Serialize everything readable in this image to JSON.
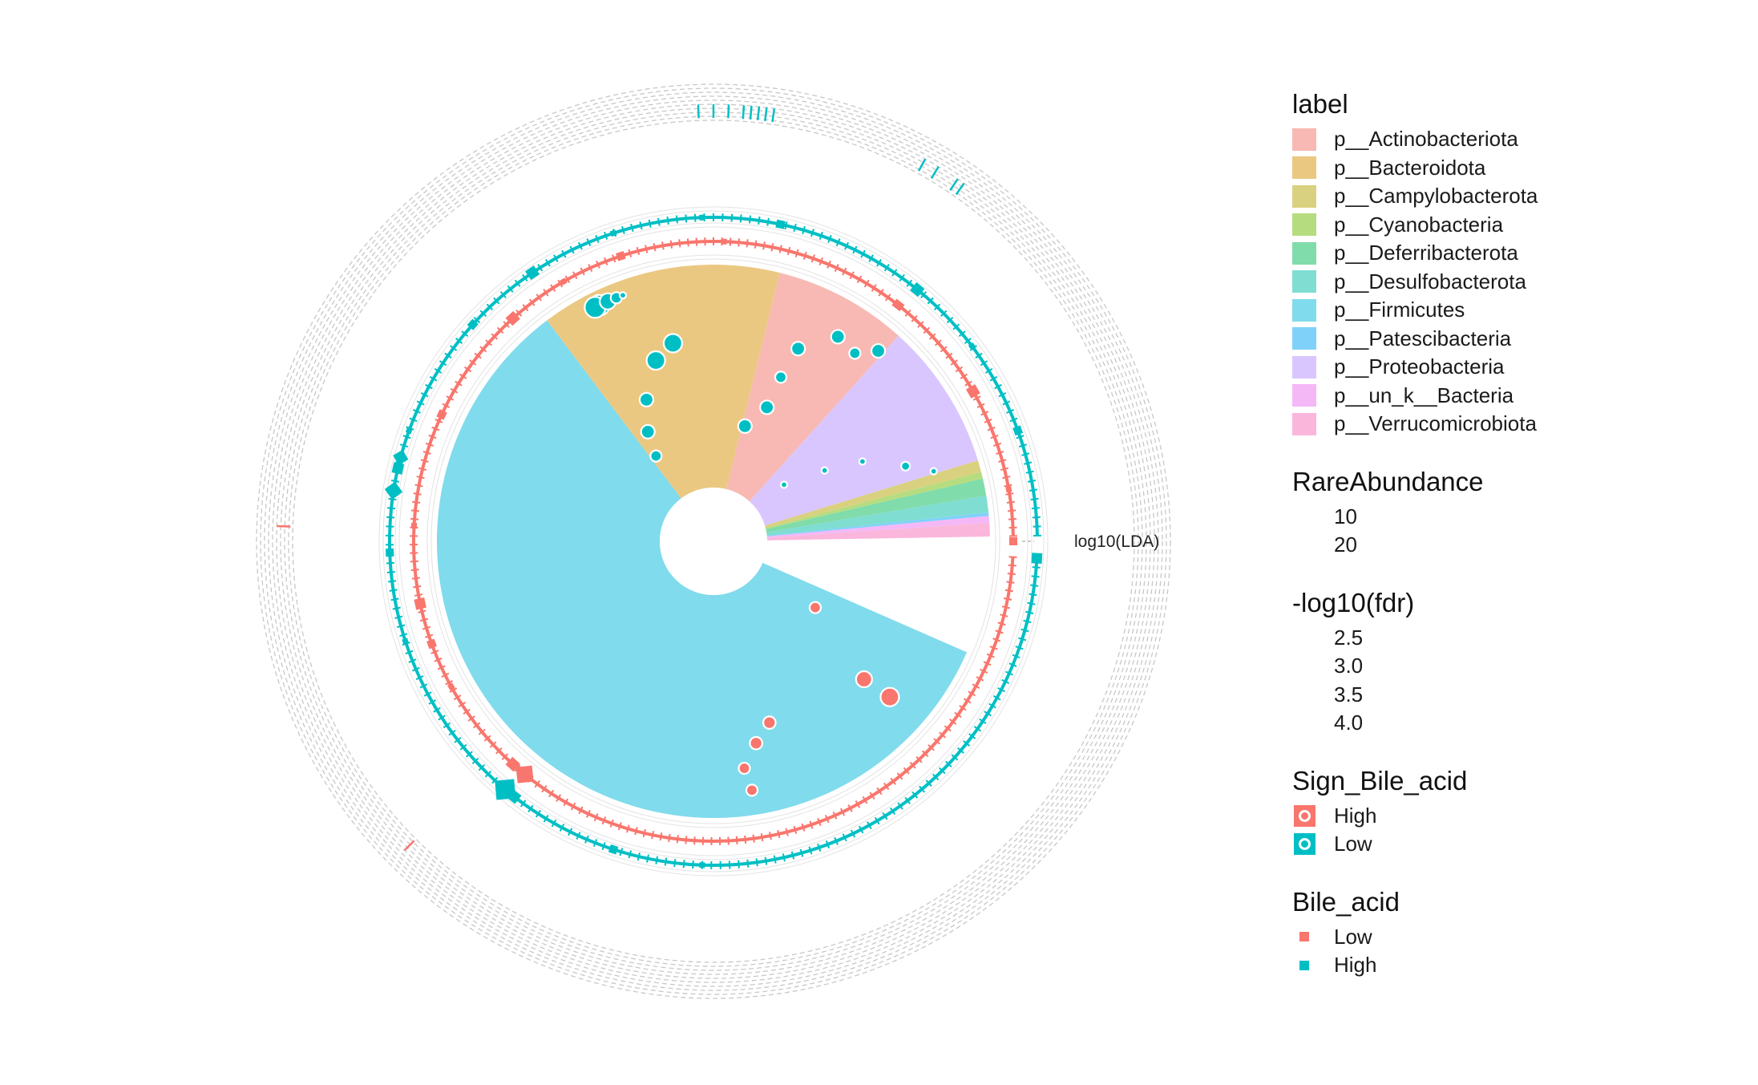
{
  "chart_data": {
    "type": "circular-lda-clade",
    "radial_label": "log10(LDA)",
    "palette": {
      "high": "#F8766D",
      "low": "#00BFC4",
      "ring_gray": "#c8c8c8"
    },
    "sectors": [
      {
        "label": "p__Actinobacteriota",
        "color": "#F8B9B4",
        "share": 0.079
      },
      {
        "label": "p__Bacteroidota",
        "color": "#EBC882",
        "share": 0.143
      },
      {
        "label": "p__Campylobacterota",
        "color": "#D9D17F",
        "share": 0.007
      },
      {
        "label": "p__Cyanobacteria",
        "color": "#B6DC80",
        "share": 0.004
      },
      {
        "label": "p__Deferribacterota",
        "color": "#80DCAA",
        "share": 0.01
      },
      {
        "label": "p__Desulfobacterota",
        "color": "#80DDD2",
        "share": 0.01
      },
      {
        "label": "p__Firmicutes",
        "color": "#80DBEC",
        "share": 0.588
      },
      {
        "label": "p__Patescibacteria",
        "color": "#80D1FA",
        "share": 0.002
      },
      {
        "label": "p__Proteobacteria",
        "color": "#D9C6FF",
        "share": 0.087
      },
      {
        "label": "p__un_k__Bacteria",
        "color": "#F4B8F7",
        "share": 0.004
      },
      {
        "label": "p__Verrucomicrobiota",
        "color": "#FBB6DC",
        "share": 0.008
      }
    ],
    "clade_points": [
      {
        "sector": "p__Bacteroidota",
        "group": "Low",
        "abundance": 18,
        "depth": 0.64,
        "pos": 0.5
      },
      {
        "sector": "p__Bacteroidota",
        "group": "Low",
        "abundance": 18,
        "depth": 0.58,
        "pos": 0.38
      },
      {
        "sector": "p__Bacteroidota",
        "group": "Low",
        "abundance": 14,
        "depth": 0.42,
        "pos": 0.23
      },
      {
        "sector": "p__Bacteroidota",
        "group": "Low",
        "abundance": 14,
        "depth": 0.28,
        "pos": 0.12
      },
      {
        "sector": "p__Bacteroidota",
        "group": "Low",
        "abundance": 12,
        "depth": 0.16,
        "pos": 0.06
      },
      {
        "sector": "p__Bacteroidota",
        "group": "Low",
        "abundance": 20,
        "depth": 0.93,
        "pos": 0.22
      },
      {
        "sector": "p__Bacteroidota",
        "group": "Low",
        "abundance": 20,
        "depth": 0.93,
        "pos": 0.2
      },
      {
        "sector": "p__Bacteroidota",
        "group": "Low",
        "abundance": 16,
        "depth": 0.93,
        "pos": 0.26
      },
      {
        "sector": "p__Bacteroidota",
        "group": "Low",
        "abundance": 12,
        "depth": 0.93,
        "pos": 0.3
      },
      {
        "sector": "p__Bacteroidota",
        "group": "Low",
        "abundance": 8,
        "depth": 0.93,
        "pos": 0.33
      },
      {
        "sector": "p__Actinobacteriota",
        "group": "Low",
        "abundance": 14,
        "depth": 0.24,
        "pos": 0.05
      },
      {
        "sector": "p__Actinobacteriota",
        "group": "Low",
        "abundance": 14,
        "depth": 0.36,
        "pos": 0.28
      },
      {
        "sector": "p__Actinobacteriota",
        "group": "Low",
        "abundance": 12,
        "depth": 0.52,
        "pos": 0.3
      },
      {
        "sector": "p__Actinobacteriota",
        "group": "Low",
        "abundance": 14,
        "depth": 0.68,
        "pos": 0.35
      },
      {
        "sector": "p__Actinobacteriota",
        "group": "Low",
        "abundance": 14,
        "depth": 0.82,
        "pos": 0.62
      },
      {
        "sector": "p__Actinobacteriota",
        "group": "Low",
        "abundance": 12,
        "depth": 0.8,
        "pos": 0.82
      },
      {
        "sector": "p__Actinobacteriota",
        "group": "Low",
        "abundance": 14,
        "depth": 0.88,
        "pos": 0.96
      },
      {
        "sector": "p__Proteobacteria",
        "group": "Low",
        "abundance": 8,
        "depth": 0.1,
        "pos": 0.3
      },
      {
        "sector": "p__Proteobacteria",
        "group": "Low",
        "abundance": 8,
        "depth": 0.3,
        "pos": 0.5
      },
      {
        "sector": "p__Proteobacteria",
        "group": "Low",
        "abundance": 8,
        "depth": 0.48,
        "pos": 0.64
      },
      {
        "sector": "p__Proteobacteria",
        "group": "Low",
        "abundance": 10,
        "depth": 0.66,
        "pos": 0.86
      },
      {
        "sector": "p__Proteobacteria",
        "group": "Low",
        "abundance": 8,
        "depth": 0.78,
        "pos": 0.98
      },
      {
        "sector": "p__Firmicutes",
        "group": "High",
        "abundance": 12,
        "depth": 0.25,
        "pos": 0.045
      },
      {
        "sector": "p__Firmicutes",
        "group": "High",
        "abundance": 16,
        "depth": 0.65,
        "pos": 0.09
      },
      {
        "sector": "p__Firmicutes",
        "group": "High",
        "abundance": 18,
        "depth": 0.8,
        "pos": 0.085
      },
      {
        "sector": "p__Firmicutes",
        "group": "High",
        "abundance": 13,
        "depth": 0.58,
        "pos": 0.235
      },
      {
        "sector": "p__Firmicutes",
        "group": "High",
        "abundance": 13,
        "depth": 0.66,
        "pos": 0.26
      },
      {
        "sector": "p__Firmicutes",
        "group": "High",
        "abundance": 12,
        "depth": 0.77,
        "pos": 0.28
      },
      {
        "sector": "p__Firmicutes",
        "group": "High",
        "abundance": 12,
        "depth": 0.88,
        "pos": 0.275
      }
    ],
    "legend": {
      "label": {
        "title": "label",
        "items": [
          "p__Actinobacteriota",
          "p__Bacteroidota",
          "p__Campylobacterota",
          "p__Cyanobacteria",
          "p__Deferribacterota",
          "p__Desulfobacterota",
          "p__Firmicutes",
          "p__Patescibacteria",
          "p__Proteobacteria",
          "p__un_k__Bacteria",
          "p__Verrucomicrobiota"
        ]
      },
      "rare_abundance": {
        "title": "RareAbundance",
        "values": [
          "10",
          "20"
        ]
      },
      "fdr": {
        "title": "-log10(fdr)",
        "values": [
          "2.5",
          "3.0",
          "3.5",
          "4.0"
        ]
      },
      "sign_bile_acid": {
        "title": "Sign_Bile_acid",
        "items": [
          "High",
          "Low"
        ]
      },
      "bile_acid": {
        "title": "Bile_acid",
        "items": [
          "Low",
          "High"
        ]
      }
    }
  }
}
